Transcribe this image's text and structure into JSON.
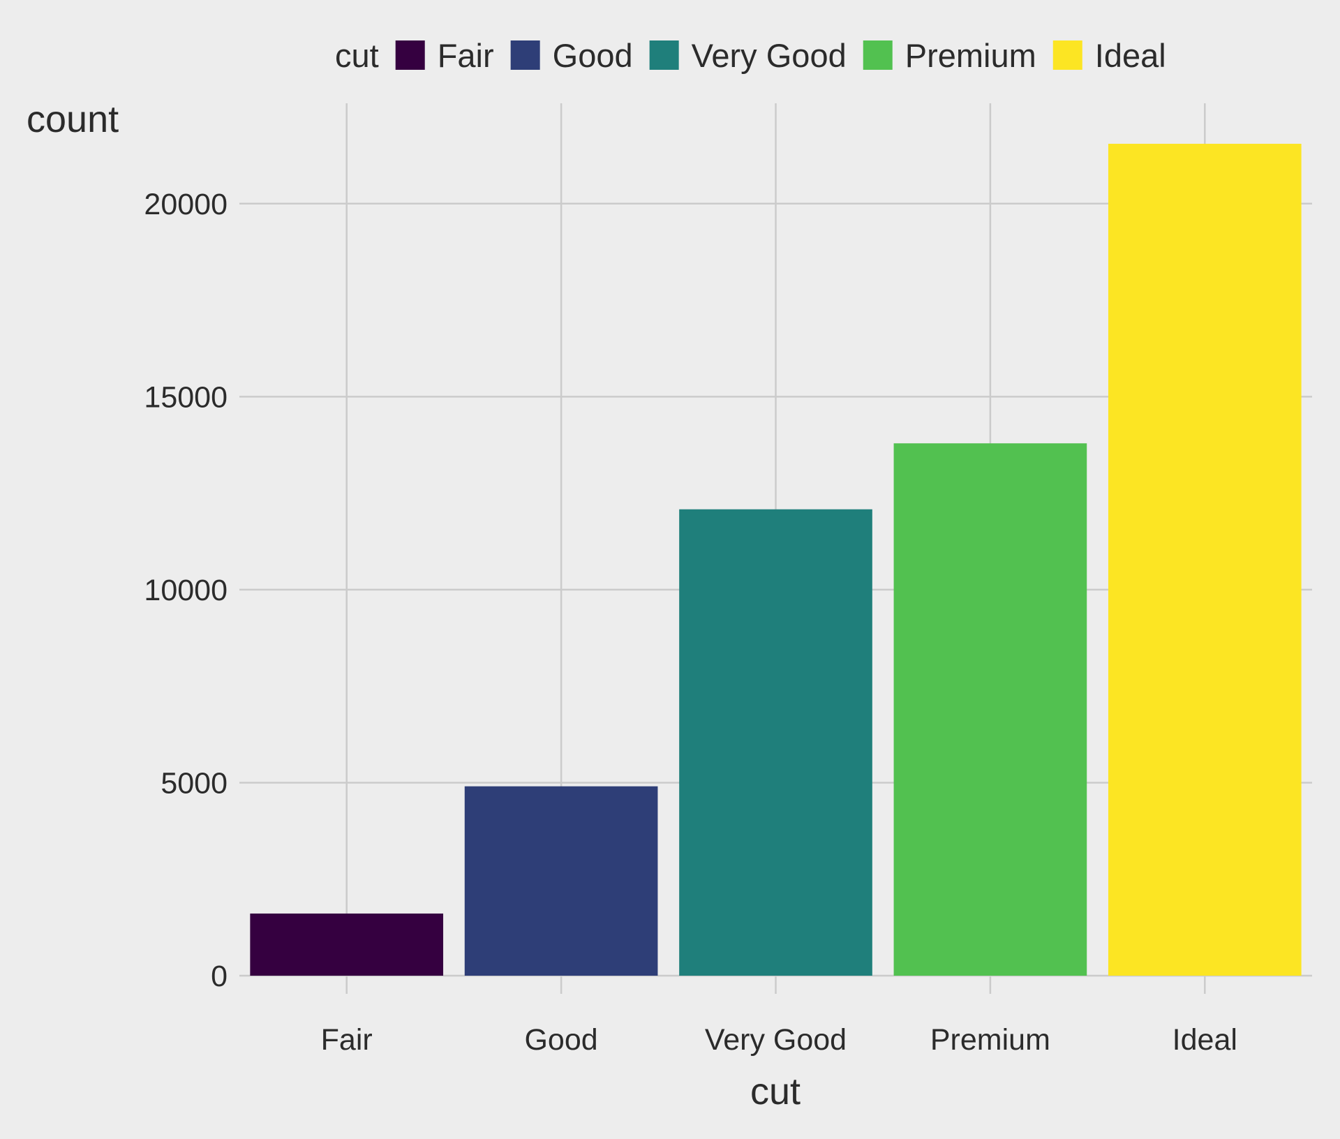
{
  "chart_data": {
    "type": "bar",
    "categories": [
      "Fair",
      "Good",
      "Very Good",
      "Premium",
      "Ideal"
    ],
    "values": [
      1610,
      4906,
      12082,
      13791,
      21551
    ],
    "colors": [
      "#350040",
      "#2e3e77",
      "#1f7f7b",
      "#52c150",
      "#fce523"
    ],
    "xlabel": "cut",
    "ylabel": "count",
    "ylim": [
      0,
      22600
    ],
    "yticks": [
      0,
      5000,
      10000,
      15000,
      20000
    ],
    "ytick_labels": [
      "0",
      "5000",
      "10000",
      "15000",
      "20000"
    ],
    "grid": true,
    "legend": {
      "title": "cut",
      "position": "top",
      "entries": [
        "Fair",
        "Good",
        "Very Good",
        "Premium",
        "Ideal"
      ]
    }
  }
}
